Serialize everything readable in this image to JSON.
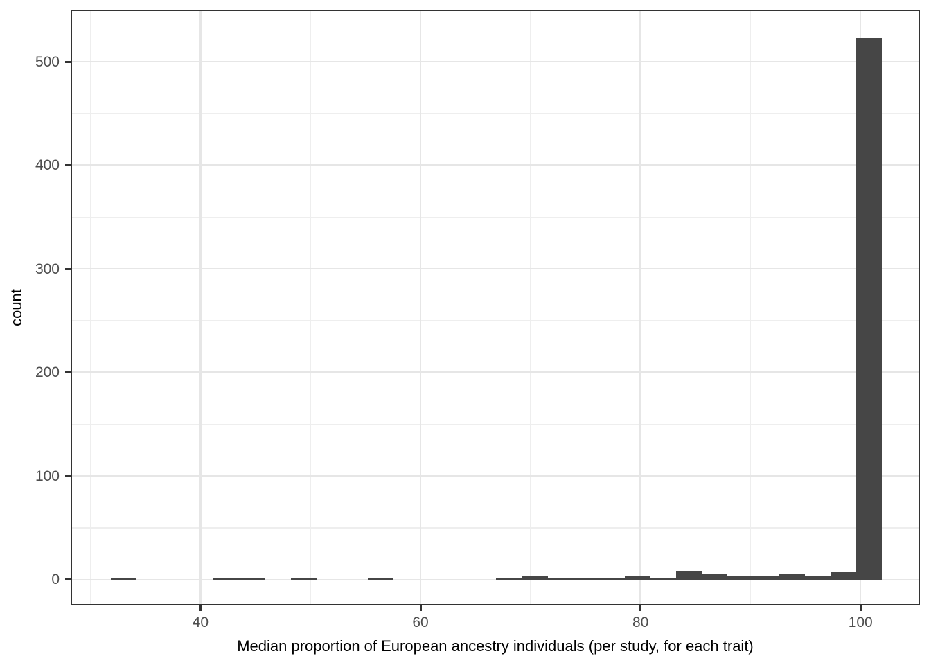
{
  "chart_data": {
    "type": "bar",
    "subtype": "histogram",
    "title": "",
    "xlabel": "Median proportion of European ancestry individuals (per study, for each trait)",
    "ylabel": "count",
    "bin_width": 2.34,
    "bins": {
      "centers": [
        33.0,
        42.36,
        44.7,
        49.37,
        56.37,
        68.06,
        70.4,
        72.73,
        75.07,
        77.41,
        79.74,
        82.08,
        84.42,
        86.75,
        89.09,
        91.43,
        93.76,
        96.1,
        98.44,
        100.77
      ],
      "counts": [
        1,
        1,
        1,
        1,
        1,
        1,
        4,
        2,
        1,
        2,
        4,
        2,
        8,
        6,
        4,
        4,
        6,
        3,
        7,
        523
      ]
    },
    "x_axis": {
      "ticks": [
        40,
        60,
        80,
        100
      ],
      "minor_ticks": [
        30,
        50,
        70,
        90
      ],
      "range": [
        28.2,
        105.4
      ]
    },
    "y_axis": {
      "ticks": [
        0,
        100,
        200,
        300,
        400,
        500
      ],
      "minor_ticks": [
        50,
        150,
        250,
        350,
        450
      ],
      "range": [
        -24.9,
        550.2
      ]
    },
    "grid": "on",
    "legend": "none"
  },
  "style": {
    "background": "#FFFFFF",
    "bar_fill": "#464646",
    "panel_border": "#333333",
    "grid_major": "#E6E6E6",
    "grid_minor": "#EEEEEE",
    "tick_color": "#333333",
    "tick_label_color": "#4D4D4D",
    "axis_title_color": "#000000"
  }
}
